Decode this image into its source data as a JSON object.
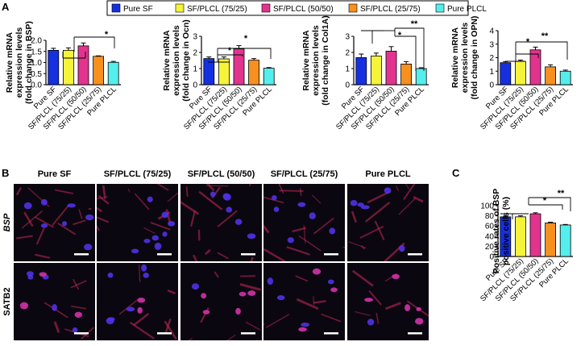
{
  "panel_letters": {
    "a": "A",
    "b": "B",
    "c": "C"
  },
  "legend": [
    {
      "label": "Pure SF",
      "color": "#1530e0"
    },
    {
      "label": "SF/PLCL (75/25)",
      "color": "#f6f43a"
    },
    {
      "label": "SF/PLCL (50/50)",
      "color": "#e2348f"
    },
    {
      "label": "SF/PLCL (25/75)",
      "color": "#f7901e"
    },
    {
      "label": "Pure PLCL",
      "color": "#54eeec"
    }
  ],
  "micrographs": {
    "columns": [
      "Pure SF",
      "SF/PLCL (75/25)",
      "SF/PLCL (50/50)",
      "SF/PLCL (25/75)",
      "Pure PLCL"
    ],
    "rows": [
      "BSP",
      "SATB2"
    ]
  },
  "chart_data": [
    {
      "panel": "A",
      "type": "bar",
      "ylabel": [
        "Relative mRNA",
        "expression levels",
        "(fold change in BSP)"
      ],
      "categories": [
        "Pure SF",
        "SF/PLCL (75/25)",
        "SF/PLCL (50/50)",
        "SF/PLCL (25/75)",
        "Pure PLCL"
      ],
      "values": [
        1.55,
        1.55,
        1.75,
        1.28,
        1.01
      ],
      "errors": [
        0.09,
        0.11,
        0.13,
        0.02,
        0.04
      ],
      "ylim": [
        0,
        2
      ],
      "yticks": [
        "0.0",
        "0.5",
        "1.0",
        "1.5",
        "2.0"
      ],
      "annotations": [
        "*"
      ]
    },
    {
      "panel": "A",
      "type": "bar",
      "ylabel": [
        "Relative mRNA",
        "expression levels",
        "(fold change in Ocn)"
      ],
      "categories": [
        "Pure SF",
        "SF/PLCL (75/25)",
        "SF/PLCL (50/50)",
        "SF/PLCL (25/75)",
        "Pure PLCL"
      ],
      "values": [
        1.62,
        1.6,
        2.22,
        1.52,
        1.02
      ],
      "errors": [
        0.1,
        0.12,
        0.2,
        0.1,
        0.04
      ],
      "ylim": [
        0,
        3
      ],
      "yticks": [
        "0",
        "1",
        "2",
        "3"
      ],
      "annotations": [
        "*",
        "*"
      ]
    },
    {
      "panel": "A",
      "type": "bar",
      "ylabel": [
        "Relative mRNA",
        "expression levels",
        "(fold change in Col1A)"
      ],
      "categories": [
        "Pure SF",
        "SF/PLCL (75/25)",
        "SF/PLCL (50/50)",
        "SF/PLCL (25/75)",
        "Pure PLCL"
      ],
      "values": [
        1.68,
        1.78,
        2.08,
        1.28,
        1.0
      ],
      "errors": [
        0.22,
        0.18,
        0.28,
        0.15,
        0.05
      ],
      "ylim": [
        0,
        3
      ],
      "yticks": [
        "0",
        "1",
        "2",
        "3"
      ],
      "annotations": [
        "*",
        "**"
      ]
    },
    {
      "panel": "A",
      "type": "bar",
      "ylabel": [
        "Relative mRNA",
        "expression levels",
        "(fold change in OPN)"
      ],
      "categories": [
        "Pure SF",
        "SF/PLCL (75/25)",
        "SF/PLCL (50/50)",
        "SF/PLCL (25/75)",
        "Pure PLCL"
      ],
      "values": [
        1.63,
        1.72,
        2.58,
        1.32,
        1.0
      ],
      "errors": [
        0.08,
        0.1,
        0.2,
        0.15,
        0.08
      ],
      "ylim": [
        0,
        4
      ],
      "yticks": [
        "0",
        "1",
        "2",
        "3",
        "4"
      ],
      "annotations": [
        "*",
        "**"
      ]
    },
    {
      "panel": "C",
      "type": "bar",
      "ylabel": [
        "Positive rates of BSP",
        "positive cells (%)"
      ],
      "categories": [
        "Pure SF",
        "SF/PLCL (75/25)",
        "SF/PLCL (50/50)",
        "SF/PLCL (25/75)",
        "Pure PLCL"
      ],
      "values": [
        78,
        78,
        84,
        66,
        62
      ],
      "errors": [
        1.5,
        2,
        2,
        1.5,
        1
      ],
      "ylim": [
        0,
        100
      ],
      "yticks": [
        "0",
        "20",
        "40",
        "60",
        "80",
        "100"
      ],
      "annotations": [
        "*",
        "**"
      ]
    }
  ]
}
